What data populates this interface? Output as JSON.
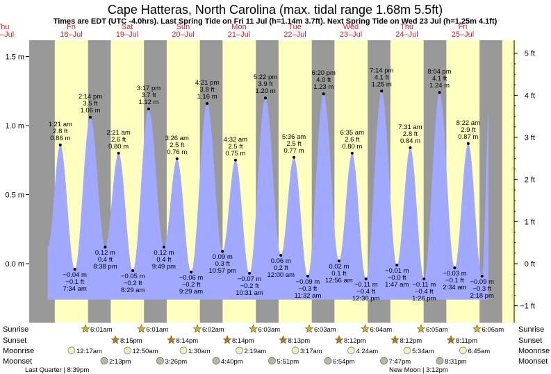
{
  "chart_data": {
    "type": "area",
    "title": "Cape Hatteras, North Carolina (max. tidal range 1.68m 5.5ft)",
    "subtitle": "Times are EDT (UTC -4.0hrs). Last Spring Tide on Fri 11 Jul (h=1.14m 3.7ft). Next Spring Tide on Wed 23 Jul (h=1.25m 4.1ft)",
    "days": [
      {
        "dow": "Thu",
        "date": "17–Jul"
      },
      {
        "dow": "Fri",
        "date": "18–Jul"
      },
      {
        "dow": "Sat",
        "date": "19–Jul"
      },
      {
        "dow": "Sun",
        "date": "20–Jul"
      },
      {
        "dow": "Mon",
        "date": "21–Jul"
      },
      {
        "dow": "Tue",
        "date": "22–Jul"
      },
      {
        "dow": "Wed",
        "date": "23–Jul"
      },
      {
        "dow": "Thu",
        "date": "24–Jul"
      },
      {
        "dow": "Fri",
        "date": "25–Jul"
      }
    ],
    "y_left": {
      "unit": "m",
      "min": -0.4,
      "max": 1.66,
      "ticks": [
        "1.5 m",
        "1.0 m",
        "0.5 m",
        "0.0 m"
      ],
      "tick_values": [
        1.5,
        1.0,
        0.5,
        0.0
      ]
    },
    "y_right": {
      "unit": "ft",
      "ticks": [
        "5 ft",
        "4 ft",
        "3 ft",
        "2 ft",
        "1 ft",
        "0 ft",
        "−1 ft"
      ],
      "tick_values": [
        5,
        4,
        3,
        2,
        1,
        0,
        -1
      ]
    },
    "tides": [
      {
        "day": 0,
        "hour": 13.35,
        "m": 0.86,
        "time": "1:21 am",
        "ft": "2.8 ft",
        "hm": "0.86 m",
        "type": "high"
      },
      {
        "day": 0,
        "hour": 19.57,
        "m": -0.04,
        "time": "7:34 am",
        "ft": "−0.1 ft",
        "hm": "−0.04 m",
        "type": "low"
      },
      {
        "day": 1,
        "hour": 2.23,
        "m": 1.06,
        "time": "2:14 pm",
        "ft": "3.5 ft",
        "hm": "1.06 m",
        "type": "high"
      },
      {
        "day": 1,
        "hour": 8.63,
        "m": 0.12,
        "time": "8:38 pm",
        "ft": "0.4 ft",
        "hm": "0.12 m",
        "type": "low"
      },
      {
        "day": 1,
        "hour": 14.35,
        "m": 0.8,
        "time": "2:21 am",
        "ft": "2.6 ft",
        "hm": "0.80 m",
        "type": "high"
      },
      {
        "day": 1,
        "hour": 20.48,
        "m": -0.05,
        "time": "8:29 am",
        "ft": "−0.2 ft",
        "hm": "−0.05 m",
        "type": "low"
      },
      {
        "day": 2,
        "hour": 3.28,
        "m": 1.12,
        "time": "3:17 pm",
        "ft": "3.7 ft",
        "hm": "1.12 m",
        "type": "high"
      },
      {
        "day": 2,
        "hour": 9.82,
        "m": 0.12,
        "time": "9:49 pm",
        "ft": "0.4 ft",
        "hm": "0.12 m",
        "type": "low"
      },
      {
        "day": 2,
        "hour": 15.43,
        "m": 0.76,
        "time": "3:26 am",
        "ft": "2.5 ft",
        "hm": "0.76 m",
        "type": "high"
      },
      {
        "day": 2,
        "hour": 21.48,
        "m": -0.06,
        "time": "9:29 am",
        "ft": "−0.2 ft",
        "hm": "−0.06 m",
        "type": "low"
      },
      {
        "day": 3,
        "hour": 4.35,
        "m": 1.16,
        "time": "4:21 pm",
        "ft": "3.8 ft",
        "hm": "1.16 m",
        "type": "high"
      },
      {
        "day": 3,
        "hour": 10.95,
        "m": 0.09,
        "time": "10:57 pm",
        "ft": "0.3 ft",
        "hm": "0.09 m",
        "type": "low"
      },
      {
        "day": 3,
        "hour": 16.53,
        "m": 0.75,
        "time": "4:32 am",
        "ft": "2.5 ft",
        "hm": "0.75 m",
        "type": "high"
      },
      {
        "day": 3,
        "hour": 22.52,
        "m": -0.07,
        "time": "10:31 am",
        "ft": "−0.2 ft",
        "hm": "−0.07 m",
        "type": "low"
      },
      {
        "day": 4,
        "hour": 5.37,
        "m": 1.2,
        "time": "5:22 pm",
        "ft": "3.9 ft",
        "hm": "1.20 m",
        "type": "high"
      },
      {
        "day": 4,
        "hour": 12.0,
        "m": 0.06,
        "time": "12:00 am",
        "ft": "0.2 ft",
        "hm": "0.06 m",
        "type": "low"
      },
      {
        "day": 4,
        "hour": 17.6,
        "m": 0.77,
        "time": "5:36 am",
        "ft": "2.5 ft",
        "hm": "0.77 m",
        "type": "high"
      },
      {
        "day": 4,
        "hour": 23.53,
        "m": -0.09,
        "time": "11:32 am",
        "ft": "−0.3 ft",
        "hm": "−0.09 m",
        "type": "low"
      },
      {
        "day": 5,
        "hour": 6.33,
        "m": 1.23,
        "time": "6:20 pm",
        "ft": "4.0 ft",
        "hm": "1.23 m",
        "type": "high"
      },
      {
        "day": 5,
        "hour": 12.93,
        "m": 0.02,
        "time": "12:56 am",
        "ft": "0.1 ft",
        "hm": "0.02 m",
        "type": "low"
      },
      {
        "day": 5,
        "hour": 18.58,
        "m": 0.8,
        "time": "6:35 am",
        "ft": "2.6 ft",
        "hm": "0.80 m",
        "type": "high"
      },
      {
        "day": 6,
        "hour": 0.5,
        "m": -0.11,
        "time": "12:30 pm",
        "ft": "−0.4 ft",
        "hm": "−0.11 m",
        "type": "low"
      },
      {
        "day": 6,
        "hour": 7.23,
        "m": 1.25,
        "time": "7:14 pm",
        "ft": "4.1 ft",
        "hm": "1.25 m",
        "type": "high"
      },
      {
        "day": 6,
        "hour": 13.78,
        "m": -0.01,
        "time": "1:47 am",
        "ft": "−0.0 ft",
        "hm": "−0.01 m",
        "type": "low"
      },
      {
        "day": 6,
        "hour": 19.52,
        "m": 0.84,
        "time": "7:31 am",
        "ft": "2.8 ft",
        "hm": "0.84 m",
        "type": "high"
      },
      {
        "day": 7,
        "hour": 1.43,
        "m": -0.11,
        "time": "1:26 pm",
        "ft": "−0.4 ft",
        "hm": "−0.11 m",
        "type": "low"
      },
      {
        "day": 7,
        "hour": 8.07,
        "m": 1.24,
        "time": "8:04 pm",
        "ft": "4.1 ft",
        "hm": "1.24 m",
        "type": "high"
      },
      {
        "day": 7,
        "hour": 14.57,
        "m": -0.03,
        "time": "2:34 am",
        "ft": "−0.1 ft",
        "hm": "−0.03 m",
        "type": "low"
      },
      {
        "day": 7,
        "hour": 20.37,
        "m": 0.87,
        "time": "8:22 am",
        "ft": "2.9 ft",
        "hm": "0.87 m",
        "type": "high"
      },
      {
        "day": 8,
        "hour": 2.3,
        "m": -0.09,
        "time": "2:18 pm",
        "ft": "−0.3 ft",
        "hm": "−0.09 m",
        "type": "low"
      }
    ],
    "sunrise": [
      "6:01am",
      "6:01am",
      "6:02am",
      "6:03am",
      "6:03am",
      "6:04am",
      "6:05am",
      "6:06am"
    ],
    "sunset": [
      "8:15pm",
      "8:14pm",
      "8:14pm",
      "8:13pm",
      "8:12pm",
      "8:12pm",
      "8:11pm"
    ],
    "moonrise": [
      "12:17am",
      "12:50am",
      "1:30am",
      "2:19am",
      "3:17am",
      "4:24am",
      "5:34am",
      "6:45am"
    ],
    "moonset": [
      "2:13pm",
      "3:26pm",
      "4:40pm",
      "5:51pm",
      "6:54pm",
      "7:47pm",
      "8:31pm"
    ],
    "row_labels": {
      "sunrise": "Sunrise",
      "sunset": "Sunset",
      "moonrise": "Moonrise",
      "moonset": "Moonset"
    },
    "moon_phases": [
      {
        "label": "Last Quarter | 8:39pm"
      },
      {
        "label": "New Moon | 3:12pm"
      }
    ],
    "colors": {
      "day": "#ffffc0",
      "night": "#999999",
      "tide": "#a0a8ff",
      "day_label": "#e0202a",
      "sun": "#c8b430",
      "sunset": "#b8782a",
      "moon": "#f0f0c0",
      "moonset": "#b8b8a0"
    }
  }
}
